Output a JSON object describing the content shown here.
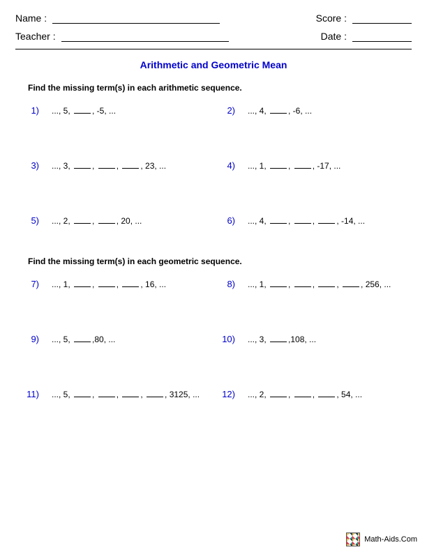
{
  "header": {
    "name_label": "Name :",
    "teacher_label": "Teacher :",
    "score_label": "Score :",
    "date_label": "Date :"
  },
  "title": "Arithmetic and Geometric Mean",
  "section1_instruction": "Find the missing term(s) in each arithmetic sequence.",
  "section2_instruction": "Find the missing term(s) in each geometric sequence.",
  "problems_section1": [
    {
      "num": "1)",
      "pre": "..., 5,",
      "blanks": 1,
      "post": ", -5, ..."
    },
    {
      "num": "2)",
      "pre": "..., 4,",
      "blanks": 1,
      "post": ", -6, ..."
    },
    {
      "num": "3)",
      "pre": "..., 3,",
      "blanks": 3,
      "post": ", 23, ..."
    },
    {
      "num": "4)",
      "pre": "..., 1,",
      "blanks": 2,
      "post": ", -17, ..."
    },
    {
      "num": "5)",
      "pre": "..., 2,",
      "blanks": 2,
      "post": ", 20, ..."
    },
    {
      "num": "6)",
      "pre": "..., 4,",
      "blanks": 3,
      "post": ", -14, ..."
    }
  ],
  "problems_section2": [
    {
      "num": "7)",
      "pre": "..., 1,",
      "blanks": 3,
      "post": ", 16, ..."
    },
    {
      "num": "8)",
      "pre": "..., 1,",
      "blanks": 4,
      "post": ", 256, ..."
    },
    {
      "num": "9)",
      "pre": "..., 5,",
      "blanks": 1,
      "post": ",80, ..."
    },
    {
      "num": "10)",
      "pre": "..., 3,",
      "blanks": 1,
      "post": ",108, ..."
    },
    {
      "num": "11)",
      "pre": "..., 5,",
      "blanks": 4,
      "post": ", 3125, ..."
    },
    {
      "num": "12)",
      "pre": "..., 2,",
      "blanks": 3,
      "post": ", 54, ..."
    }
  ],
  "footer_text": "Math-Aids.Com",
  "colors": {
    "accent": "#0000cc",
    "text": "#000000",
    "background": "#ffffff"
  }
}
